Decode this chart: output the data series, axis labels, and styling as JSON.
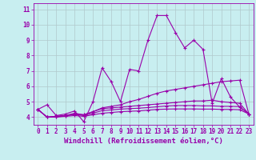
{
  "xlabel": "Windchill (Refroidissement éolien,°C)",
  "background_color": "#c8eef0",
  "line_color": "#9900aa",
  "grid_color": "#b0c8cc",
  "xlim": [
    -0.5,
    23.5
  ],
  "ylim": [
    3.5,
    11.4
  ],
  "xticks": [
    0,
    1,
    2,
    3,
    4,
    5,
    6,
    7,
    8,
    9,
    10,
    11,
    12,
    13,
    14,
    15,
    16,
    17,
    18,
    19,
    20,
    21,
    22,
    23
  ],
  "yticks": [
    4,
    5,
    6,
    7,
    8,
    9,
    10,
    11
  ],
  "series": [
    {
      "x": [
        0,
        1,
        2,
        3,
        4,
        5,
        6,
        7,
        8,
        9,
        10,
        11,
        12,
        13,
        14,
        15,
        16,
        17,
        18,
        19,
        20,
        21,
        22,
        23
      ],
      "y": [
        4.5,
        4.8,
        4.1,
        4.2,
        4.4,
        3.7,
        5.0,
        7.2,
        6.3,
        5.0,
        7.1,
        7.0,
        9.0,
        10.6,
        10.6,
        9.5,
        8.5,
        9.0,
        8.4,
        4.9,
        6.5,
        5.3,
        4.65,
        4.2
      ]
    },
    {
      "x": [
        0,
        1,
        2,
        3,
        4,
        5,
        6,
        7,
        8,
        9,
        10,
        11,
        12,
        13,
        14,
        15,
        16,
        17,
        18,
        19,
        20,
        21,
        22,
        23
      ],
      "y": [
        4.5,
        4.0,
        4.05,
        4.1,
        4.2,
        4.15,
        4.35,
        4.6,
        4.7,
        4.8,
        5.0,
        5.15,
        5.35,
        5.55,
        5.7,
        5.8,
        5.9,
        6.0,
        6.1,
        6.2,
        6.3,
        6.35,
        6.4,
        4.2
      ]
    },
    {
      "x": [
        0,
        1,
        2,
        3,
        4,
        5,
        6,
        7,
        8,
        9,
        10,
        11,
        12,
        13,
        14,
        15,
        16,
        17,
        18,
        19,
        20,
        21,
        22,
        23
      ],
      "y": [
        4.5,
        4.0,
        4.05,
        4.1,
        4.25,
        4.15,
        4.35,
        4.55,
        4.6,
        4.65,
        4.7,
        4.75,
        4.8,
        4.85,
        4.9,
        4.95,
        5.0,
        5.05,
        5.05,
        5.1,
        5.0,
        4.95,
        4.9,
        4.2
      ]
    },
    {
      "x": [
        0,
        1,
        2,
        3,
        4,
        5,
        6,
        7,
        8,
        9,
        10,
        11,
        12,
        13,
        14,
        15,
        16,
        17,
        18,
        19,
        20,
        21,
        22,
        23
      ],
      "y": [
        4.5,
        4.0,
        4.0,
        4.05,
        4.1,
        4.05,
        4.15,
        4.25,
        4.3,
        4.35,
        4.38,
        4.4,
        4.45,
        4.5,
        4.52,
        4.53,
        4.53,
        4.53,
        4.52,
        4.52,
        4.5,
        4.5,
        4.48,
        4.2
      ]
    },
    {
      "x": [
        0,
        1,
        2,
        3,
        4,
        5,
        6,
        7,
        8,
        9,
        10,
        11,
        12,
        13,
        14,
        15,
        16,
        17,
        18,
        19,
        20,
        21,
        22,
        23
      ],
      "y": [
        4.5,
        4.0,
        4.02,
        4.07,
        4.18,
        4.1,
        4.25,
        4.42,
        4.47,
        4.52,
        4.55,
        4.58,
        4.62,
        4.67,
        4.72,
        4.75,
        4.75,
        4.75,
        4.73,
        4.73,
        4.7,
        4.7,
        4.68,
        4.2
      ]
    }
  ],
  "marker": "+",
  "markersize": 3,
  "linewidth": 0.8,
  "tick_fontsize": 5.5,
  "xlabel_fontsize": 6.5
}
